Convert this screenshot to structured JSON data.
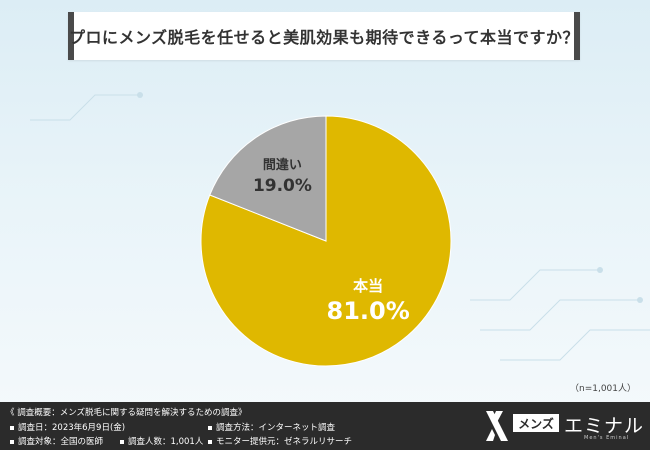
{
  "question": "プロにメンズ脱毛を任せると美肌効果も期待できるって本当ですか？",
  "chart_data": {
    "type": "pie",
    "title": "",
    "slices": [
      {
        "label": "本当",
        "value": 81.0,
        "display": "81.0%",
        "color": "#dfb800"
      },
      {
        "label": "間違い",
        "value": 19.0,
        "display": "19.0%",
        "color": "#a6a6a6"
      }
    ],
    "start_angle_deg": 0,
    "direction": "clockwise"
  },
  "sample_note": "（n=1,001人）",
  "footer": {
    "survey_title": "《 調査概要：メンズ脱毛に関する疑問を解決するための調査》",
    "items": [
      {
        "label": "調査日：2023年6月9日(金)"
      },
      {
        "label": "調査方法：インターネット調査"
      },
      {
        "label": "調査対象：全国の医師"
      },
      {
        "label": "調査人数：1,001人"
      },
      {
        "label": "モニター提供元：ゼネラルリサーチ"
      }
    ]
  },
  "logo": {
    "box_text": "メンズ",
    "main_text": "エミナル",
    "sub_text": "Men's Eminal"
  }
}
